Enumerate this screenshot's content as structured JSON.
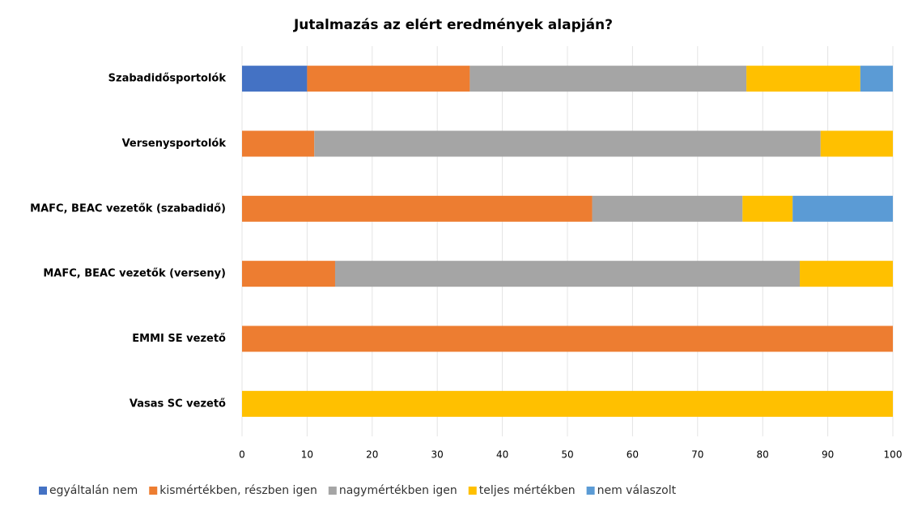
{
  "chart_data": {
    "type": "stacked-barh",
    "title": "Jutalmazás az elért eredmények alapján?",
    "categories": [
      "Szabadidősportolók",
      "Versenysportolók",
      "MAFC, BEAC vezetők (szabadidő)",
      "MAFC, BEAC vezetők (verseny)",
      "EMMI SE vezető",
      "Vasas SC vezető"
    ],
    "series": [
      {
        "name": "egyáltalán nem",
        "color": "#4472c4",
        "values": [
          10,
          0,
          0,
          0,
          0,
          0
        ]
      },
      {
        "name": "kismértékben, részben igen",
        "color": "#ed7d31",
        "values": [
          25,
          11.1,
          53.8,
          14.3,
          100,
          0
        ]
      },
      {
        "name": "nagymértékben igen",
        "color": "#a5a5a5",
        "values": [
          42.5,
          77.8,
          23.1,
          71.4,
          0,
          0
        ]
      },
      {
        "name": "teljes mértékben",
        "color": "#ffc000",
        "values": [
          17.5,
          11.1,
          7.7,
          14.3,
          0,
          100
        ]
      },
      {
        "name": "nem válaszolt",
        "color": "#5b9bd5",
        "values": [
          5,
          0,
          15.4,
          0,
          0,
          0
        ]
      }
    ],
    "xlim": [
      0,
      100
    ],
    "xticks": [
      0,
      10,
      20,
      30,
      40,
      50,
      60,
      70,
      80,
      90,
      100
    ],
    "grid": true,
    "legend": "bottom"
  }
}
